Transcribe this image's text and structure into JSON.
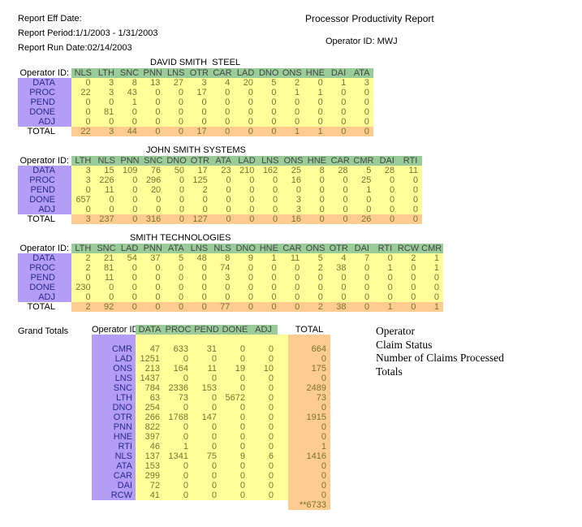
{
  "header": {
    "eff_date": "Report Eff Date:",
    "period": "Report Period:1/1/2003 - 1/31/2003",
    "run_date": "Report Run Date:02/14/2003",
    "title": "Processor Productivity Report",
    "operator_id": "Operator ID: MWJ"
  },
  "labels": {
    "operator_id_col": "Operator ID:",
    "total": "TOTAL"
  },
  "colors": {
    "operator_green": "#99CC99",
    "claim_status_purple": "#B39DF7",
    "claims_yellow": "#FFFF99",
    "totals_orange": "#FFCC8F",
    "claim_label_navy": "#2A2A8C",
    "number_olive": "#75752F"
  },
  "tables": [
    {
      "title": "DAVID SMITH  STEEL",
      "columns": [
        "NLS",
        "LTH",
        "SNC",
        "PNN",
        "LNS",
        "OTR",
        "CAR",
        "LAD",
        "DNO",
        "ONS",
        "HNE",
        "DAI",
        "ATA"
      ],
      "rows": [
        {
          "label": "DATA",
          "values": [
            0,
            3,
            8,
            13,
            27,
            3,
            4,
            20,
            5,
            2,
            0,
            1,
            3
          ]
        },
        {
          "label": "PROC",
          "values": [
            22,
            3,
            43,
            0,
            0,
            17,
            0,
            0,
            0,
            1,
            1,
            0,
            0
          ]
        },
        {
          "label": "PEND",
          "values": [
            0,
            0,
            1,
            0,
            0,
            0,
            0,
            0,
            0,
            0,
            0,
            0,
            0
          ]
        },
        {
          "label": "DONE",
          "values": [
            0,
            81,
            0,
            0,
            0,
            0,
            0,
            0,
            0,
            0,
            0,
            0,
            0
          ]
        },
        {
          "label": "ADJ",
          "values": [
            0,
            0,
            0,
            0,
            0,
            0,
            0,
            0,
            0,
            0,
            0,
            0,
            0
          ]
        }
      ],
      "total": [
        22,
        3,
        44,
        0,
        0,
        17,
        0,
        0,
        0,
        1,
        1,
        0,
        0
      ]
    },
    {
      "title": "JOHN SMITH SYSTEMS",
      "columns": [
        "LTH",
        "NLS",
        "PNN",
        "SNC",
        "DNO",
        "OTR",
        "ATA",
        "LAD",
        "LNS",
        "ONS",
        "HNE",
        "CAR",
        "CMR",
        "DAI",
        "RTI"
      ],
      "rows": [
        {
          "label": "DATA",
          "values": [
            3,
            15,
            109,
            76,
            50,
            17,
            23,
            210,
            162,
            25,
            8,
            28,
            5,
            28,
            11
          ]
        },
        {
          "label": "PROC",
          "values": [
            3,
            226,
            0,
            296,
            0,
            125,
            0,
            0,
            0,
            16,
            0,
            0,
            25,
            0,
            0
          ]
        },
        {
          "label": "PEND",
          "values": [
            0,
            11,
            0,
            20,
            0,
            2,
            0,
            0,
            0,
            0,
            0,
            0,
            1,
            0,
            0
          ]
        },
        {
          "label": "DONE",
          "values": [
            657,
            0,
            0,
            0,
            0,
            0,
            0,
            0,
            0,
            3,
            0,
            0,
            0,
            0,
            0
          ]
        },
        {
          "label": "ADJ",
          "values": [
            0,
            0,
            0,
            0,
            0,
            0,
            0,
            0,
            0,
            3,
            0,
            0,
            0,
            0,
            0
          ]
        }
      ],
      "total": [
        3,
        237,
        0,
        316,
        0,
        127,
        0,
        0,
        0,
        16,
        0,
        0,
        26,
        0,
        0
      ]
    },
    {
      "title": "SMITH TECHNOLOGIES",
      "columns": [
        "LTH",
        "SNC",
        "LAD",
        "PNN",
        "ATA",
        "LNS",
        "NLS",
        "DNO",
        "HNE",
        "CAR",
        "ONS",
        "OTR",
        "DAI",
        "RTI",
        "RCW",
        "CMR"
      ],
      "rows": [
        {
          "label": "DATA",
          "values": [
            2,
            21,
            54,
            37,
            5,
            48,
            8,
            9,
            1,
            11,
            5,
            4,
            7,
            0,
            2,
            1
          ]
        },
        {
          "label": "PROC",
          "values": [
            2,
            81,
            0,
            0,
            0,
            0,
            74,
            0,
            0,
            0,
            2,
            38,
            0,
            1,
            0,
            1
          ]
        },
        {
          "label": "PEND",
          "values": [
            0,
            11,
            0,
            0,
            0,
            0,
            3,
            0,
            0,
            0,
            0,
            0,
            0,
            0,
            0,
            0
          ]
        },
        {
          "label": "DONE",
          "values": [
            230,
            0,
            0,
            0,
            0,
            0,
            0,
            0,
            0,
            0,
            0,
            0,
            0,
            0,
            0,
            0
          ]
        },
        {
          "label": "ADJ",
          "values": [
            0,
            0,
            0,
            0,
            0,
            0,
            0,
            0,
            0,
            0,
            0,
            0,
            0,
            0,
            0,
            0
          ]
        }
      ],
      "total": [
        2,
        92,
        0,
        0,
        0,
        0,
        77,
        0,
        0,
        0,
        2,
        38,
        0,
        1,
        0,
        1
      ]
    }
  ],
  "grand_totals": {
    "label": "Grand Totals",
    "operator_header": "Operator ID",
    "columns": [
      "DATA",
      "PROC",
      "PEND",
      "DONE",
      "ADJ"
    ],
    "total_header": "TOTAL",
    "rows": [
      {
        "operator": "CMR",
        "values": [
          47,
          633,
          31,
          0,
          0
        ],
        "total": 664
      },
      {
        "operator": "LAD",
        "values": [
          1251,
          0,
          0,
          0,
          0
        ],
        "total": 0
      },
      {
        "operator": "ONS",
        "values": [
          213,
          164,
          11,
          19,
          10
        ],
        "total": 175
      },
      {
        "operator": "LNS",
        "values": [
          1437,
          0,
          0,
          0,
          0
        ],
        "total": 0
      },
      {
        "operator": "SNC",
        "values": [
          784,
          2336,
          153,
          0,
          0
        ],
        "total": 2489
      },
      {
        "operator": "LTH",
        "values": [
          63,
          73,
          0,
          5672,
          0
        ],
        "total": 73
      },
      {
        "operator": "DNO",
        "values": [
          254,
          0,
          0,
          0,
          0
        ],
        "total": 0
      },
      {
        "operator": "OTR",
        "values": [
          266,
          1768,
          147,
          0,
          0
        ],
        "total": 1915
      },
      {
        "operator": "PNN",
        "values": [
          822,
          0,
          0,
          0,
          0
        ],
        "total": 0
      },
      {
        "operator": "HNE",
        "values": [
          397,
          0,
          0,
          0,
          0
        ],
        "total": 0
      },
      {
        "operator": "RTI",
        "values": [
          46,
          1,
          0,
          0,
          0
        ],
        "total": 1
      },
      {
        "operator": "NLS",
        "values": [
          137,
          1341,
          75,
          9,
          6
        ],
        "total": 1416
      },
      {
        "operator": "ATA",
        "values": [
          153,
          0,
          0,
          0,
          0
        ],
        "total": 0
      },
      {
        "operator": "CAR",
        "values": [
          299,
          0,
          0,
          0,
          0
        ],
        "total": 0
      },
      {
        "operator": "DAI",
        "values": [
          72,
          0,
          0,
          0,
          0
        ],
        "total": 0
      },
      {
        "operator": "RCW",
        "values": [
          41,
          0,
          0,
          0,
          0
        ],
        "total": 0
      }
    ],
    "grand_total": "**6733"
  },
  "legend": {
    "items": [
      {
        "label": "Operator",
        "color": "#99CC99"
      },
      {
        "label": "Claim Status",
        "color": "#B39DF7"
      },
      {
        "label": "Number of Claims Processed",
        "color": "#FFFF99"
      },
      {
        "label": "Totals",
        "color": "#FFCC8F"
      }
    ]
  }
}
